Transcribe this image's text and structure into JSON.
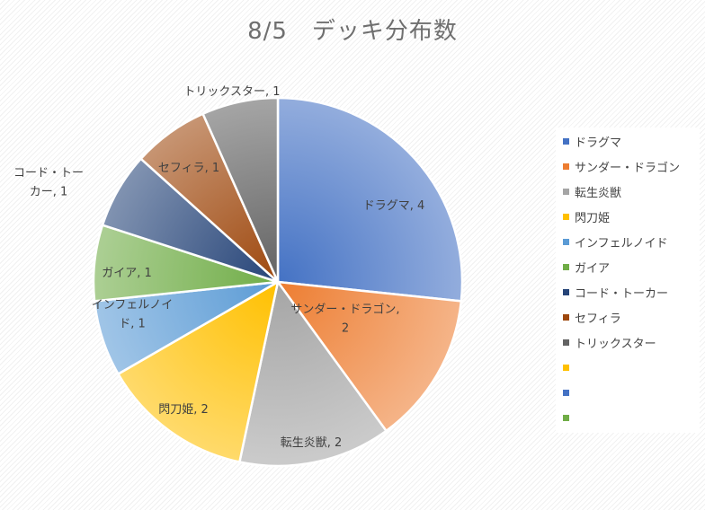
{
  "chart_data": {
    "type": "pie",
    "title": "8/5　デッキ分布数",
    "categories": [
      "ドラグマ",
      "サンダー・ドラゴン",
      "転生炎獣",
      "閃刀姫",
      "インフェルノイド",
      "ガイア",
      "コード・トーカー",
      "セフィラ",
      "トリックスター"
    ],
    "values": [
      4,
      2,
      2,
      2,
      1,
      1,
      1,
      1,
      1
    ],
    "colors": [
      "#4472c4",
      "#ed7d31",
      "#a5a5a5",
      "#ffc000",
      "#5b9bd5",
      "#70ad47",
      "#264478",
      "#9e480e",
      "#636363"
    ],
    "data_labels": [
      [
        "ドラグマ, 4"
      ],
      [
        "サンダー・ドラゴン,",
        "2"
      ],
      [
        "転生炎獣, 2"
      ],
      [
        "閃刀姫, 2"
      ],
      [
        "インフェルノイ",
        "ド, 1"
      ],
      [
        "ガイア, 1"
      ],
      [
        "コード・トー",
        "カー, 1"
      ],
      [
        "セフィラ, 1"
      ],
      [
        "トリックスター, 1"
      ]
    ],
    "legend": {
      "position": "right",
      "extra_swatch_colors": [
        "#ffc000",
        "#4472c4",
        "#70ad47"
      ]
    }
  }
}
